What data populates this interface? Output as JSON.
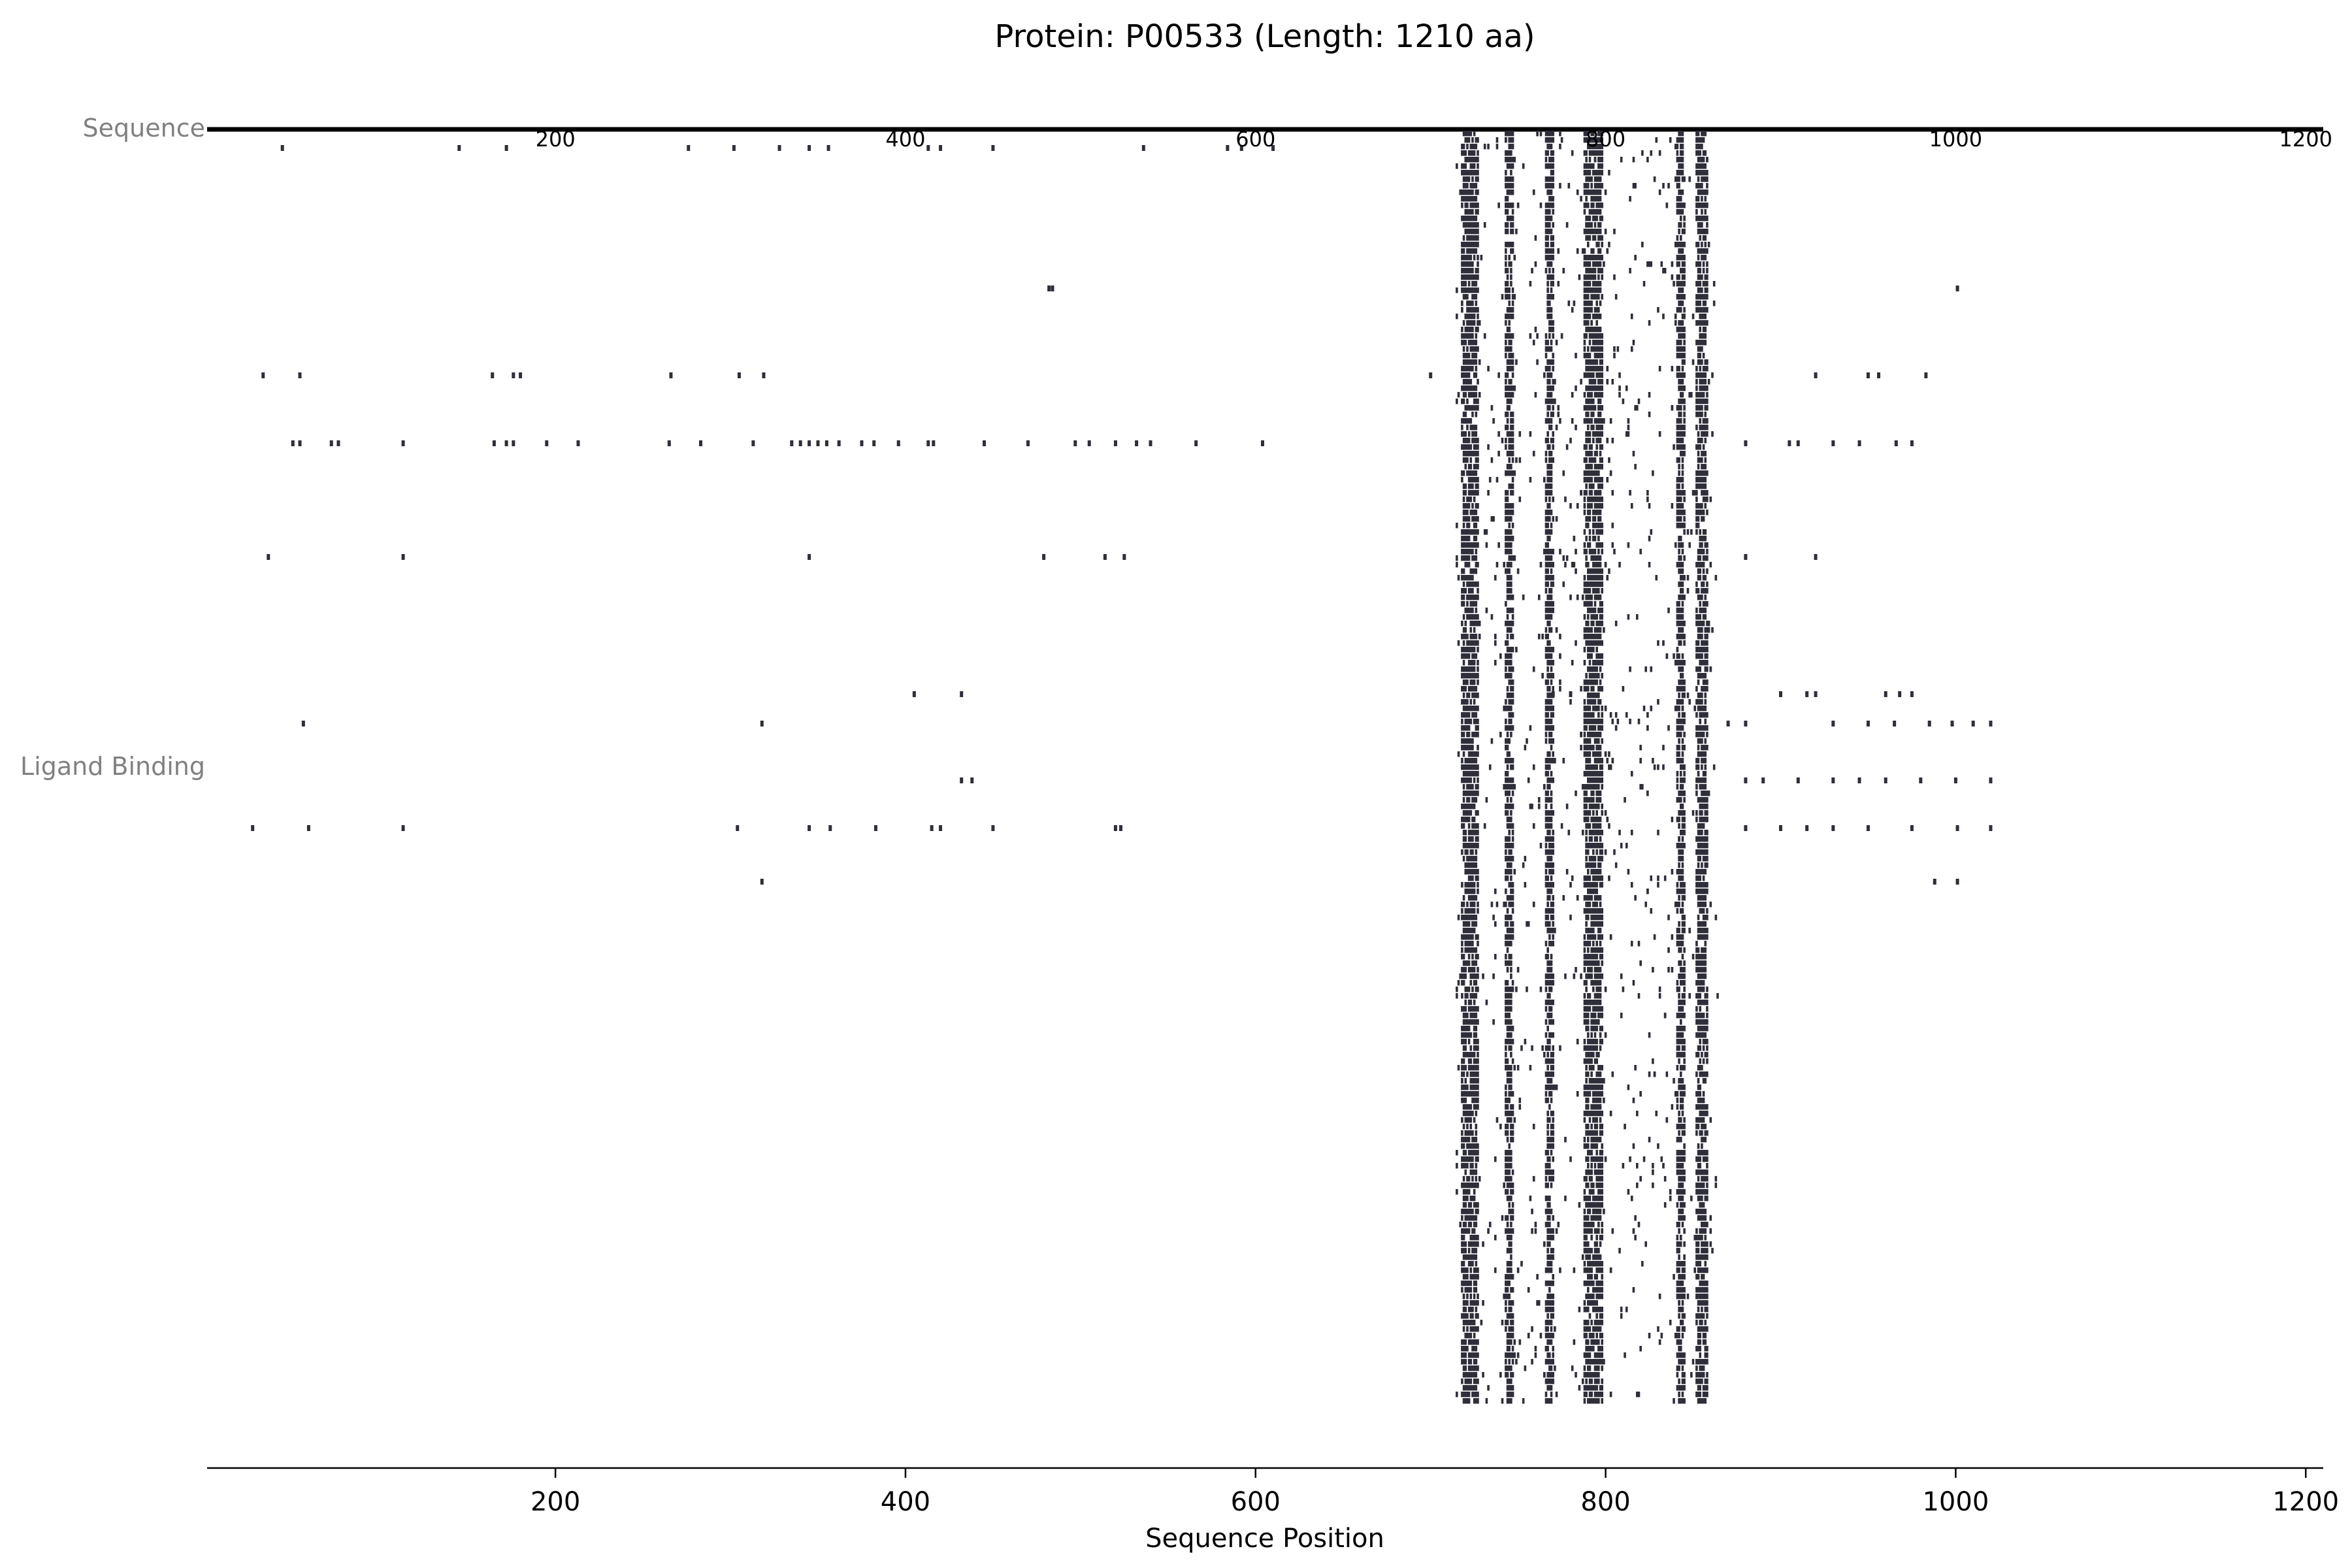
{
  "chart_data": {
    "type": "scatter",
    "title": "Protein: P00533 (Length: 1210 aa)",
    "xlabel": "Sequence Position",
    "ylabel": "",
    "xlim": [
      1,
      1210
    ],
    "xticks": [
      200,
      400,
      600,
      800,
      1000,
      1200
    ],
    "sequence_ticks": [
      200,
      400,
      600,
      800,
      1000,
      1200
    ],
    "tracks": [
      "Sequence",
      "Ligand Binding"
    ],
    "grid": false,
    "legend": "none",
    "colors": {
      "mark": "#2f2f3a",
      "sequence_line": "#000000",
      "axis": "#000000",
      "track_label": "#808080"
    },
    "binding_column_bands": [
      {
        "start": 718,
        "end": 727
      },
      {
        "start": 743,
        "end": 747
      },
      {
        "start": 766,
        "end": 770
      },
      {
        "start": 788,
        "end": 798
      },
      {
        "start": 841,
        "end": 845
      },
      {
        "start": 852,
        "end": 858
      }
    ],
    "scattered_binding_positions": [
      [
        44,
        145,
        172,
        276,
        302,
        328,
        345,
        356,
        413,
        420,
        450,
        536,
        584,
        592,
        610
      ],
      [
        482,
        484,
        1001
      ],
      [
        33,
        54,
        164,
        176,
        180,
        266,
        305,
        319,
        700,
        920,
        950,
        956,
        983
      ],
      [
        50,
        54,
        72,
        76,
        113,
        165,
        172,
        176,
        195,
        213,
        265,
        283,
        313,
        335,
        340,
        345,
        350,
        355,
        362,
        375,
        382,
        396,
        413,
        416,
        445,
        470,
        497,
        505,
        520,
        532,
        540,
        566,
        604,
        880,
        905,
        910,
        930,
        945,
        966,
        975
      ],
      [
        36,
        113,
        345,
        479,
        514,
        525,
        880,
        920
      ],
      [
        405,
        432,
        770,
        780,
        900,
        915,
        920,
        960,
        968,
        975
      ],
      [
        56,
        318,
        870,
        880,
        930,
        950,
        965,
        985,
        998,
        1010,
        1020
      ],
      [
        432,
        438,
        880,
        890,
        910,
        930,
        945,
        960,
        980,
        1000,
        1020
      ],
      [
        27,
        59,
        113,
        304,
        345,
        357,
        383,
        415,
        420,
        450,
        520,
        523,
        880,
        900,
        915,
        930,
        950,
        975,
        1001,
        1020
      ],
      [
        318,
        1001,
        988
      ]
    ]
  }
}
